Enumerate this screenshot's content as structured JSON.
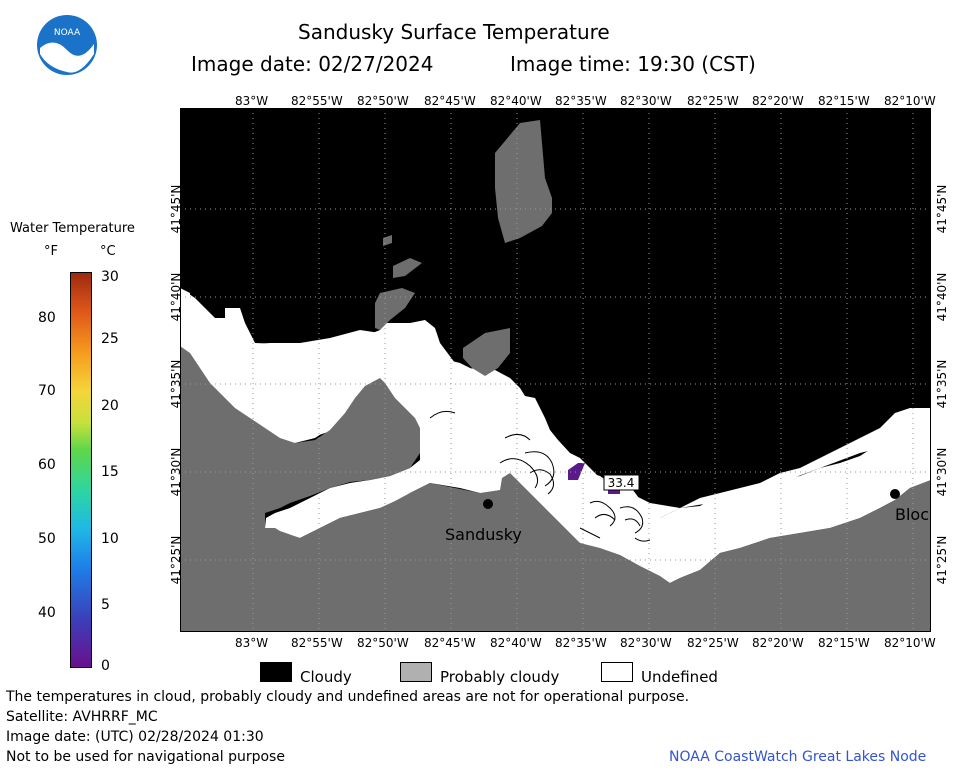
{
  "header": {
    "title": "Sandusky Surface Temperature",
    "image_date": "Image date: 02/27/2024",
    "image_time": "Image time: 19:30 (CST)",
    "logo_text": "NOAA"
  },
  "map": {
    "lon_labels": [
      "83°W",
      "82°55'W",
      "82°50'W",
      "82°45'W",
      "82°40'W",
      "82°35'W",
      "82°30'W",
      "82°25'W",
      "82°20'W",
      "82°15'W",
      "82°10'W"
    ],
    "lat_labels": [
      "41°45'N",
      "41°40'N",
      "41°35'N",
      "41°30'N",
      "41°25'N"
    ],
    "places": {
      "sandusky": "Sandusky",
      "bloc": "Bloc"
    },
    "temp_label": "33.4"
  },
  "colorbar": {
    "title": "Water Temperature",
    "unit_f": "°F",
    "unit_c": "°C",
    "f_ticks": [
      "80",
      "70",
      "60",
      "50",
      "40"
    ],
    "c_ticks": [
      "30",
      "25",
      "20",
      "15",
      "10",
      "5",
      "0"
    ]
  },
  "legend": {
    "cloudy": "Cloudy",
    "probably_cloudy": "Probably cloudy",
    "undefined": "Undefined"
  },
  "footer": {
    "disclaimer": "The temperatures in cloud, probably cloudy and undefined areas are not for operational purpose.",
    "satellite": "Satellite: AVHRRF_MC",
    "utc_date": "Image date: (UTC) 02/28/2024  01:30",
    "nav_warning": "Not to be used for navigational purpose",
    "credit": "NOAA CoastWatch Great Lakes Node"
  },
  "colors": {
    "cloudy": "#000000",
    "probably_cloudy": "#6e6e6e",
    "undefined": "#ffffff",
    "credit": "#3355cc",
    "cold_patch": "#5a1a8a"
  }
}
